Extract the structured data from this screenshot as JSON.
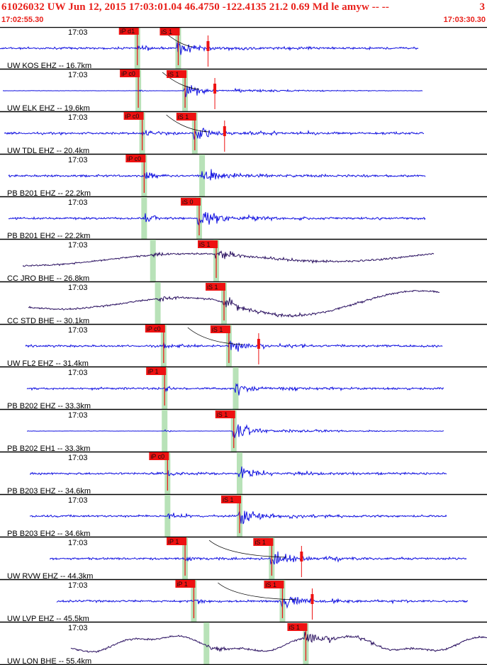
{
  "header": {
    "title": "61026032 UW Jun 12, 2015 17:03:01.04    46.4750 -122.4135 21.2 0.69 Md le amyw -- --",
    "title_right": "3",
    "start_time": "17:02:55.30",
    "end_time": "17:03:30.30"
  },
  "colors": {
    "header_text": "#e8201a",
    "trace_blue": "#1010e0",
    "trace_dark": "#2a1060",
    "pick_red": "#ee1111",
    "window_green": "#b8e2b8",
    "divider": "#000000"
  },
  "traces": [
    {
      "label": "UW KOS EHZ -- 16.7km",
      "time": "17:03",
      "color": "blue",
      "p_tag": "iP d1",
      "s_tag": "iS 1",
      "p": 0.282,
      "s": 0.366,
      "flat": false,
      "long_period": false,
      "amp": 0.35
    },
    {
      "label": "UW ELK EHZ -- 19.6km",
      "time": "17:03",
      "color": "blue",
      "p_tag": "iP c0",
      "s_tag": "iS 1",
      "p": 0.284,
      "s": 0.38,
      "flat": true,
      "long_period": false,
      "amp": 0.3
    },
    {
      "label": "UW TDL EHZ -- 20.4km",
      "time": "17:03",
      "color": "blue",
      "p_tag": "iP c0",
      "s_tag": "iS 1",
      "p": 0.292,
      "s": 0.4,
      "flat": false,
      "long_period": false,
      "amp": 0.4
    },
    {
      "label": "PB B201 EHZ -- 22.2km",
      "time": "17:03",
      "color": "blue",
      "p_tag": "iP c0",
      "s_tag": "",
      "p": 0.296,
      "s": 0.415,
      "flat": false,
      "long_period": false,
      "amp": 0.45
    },
    {
      "label": "PB B201 EH2 -- 22.2km",
      "time": "17:03",
      "color": "blue",
      "p_tag": "",
      "s_tag": "iS 0",
      "p": 0.296,
      "s": 0.409,
      "flat": false,
      "long_period": false,
      "amp": 0.5
    },
    {
      "label": "CC JRO BHE -- 26.8km",
      "time": "17:03",
      "color": "dark",
      "p_tag": "",
      "s_tag": "iS 1",
      "p": 0.314,
      "s": 0.444,
      "flat": false,
      "long_period": true,
      "amp": 0.25
    },
    {
      "label": "CC STD BHE -- 30.1km",
      "time": "17:03",
      "color": "dark",
      "p_tag": "",
      "s_tag": "iS 1",
      "p": 0.324,
      "s": 0.46,
      "flat": false,
      "long_period": true,
      "amp": 0.35
    },
    {
      "label": "UW FL2 EHZ -- 31.4km",
      "time": "17:03",
      "color": "blue",
      "p_tag": "iP c0",
      "s_tag": "iS 1",
      "p": 0.336,
      "s": 0.47,
      "flat": false,
      "long_period": false,
      "amp": 0.35
    },
    {
      "label": "PB B202 EHZ -- 33.3km",
      "time": "17:03",
      "color": "blue",
      "p_tag": "iP 1",
      "s_tag": "",
      "p": 0.338,
      "s": 0.484,
      "flat": false,
      "long_period": false,
      "amp": 0.3
    },
    {
      "label": "PB B202 EH1 -- 33.3km",
      "time": "17:03",
      "color": "blue",
      "p_tag": "",
      "s_tag": "iS 1",
      "p": 0.338,
      "s": 0.48,
      "flat": true,
      "long_period": false,
      "amp": 0.4
    },
    {
      "label": "PB B203 EHZ -- 34.6km",
      "time": "17:03",
      "color": "blue",
      "p_tag": "iP c0",
      "s_tag": "",
      "p": 0.344,
      "s": 0.492,
      "flat": false,
      "long_period": false,
      "amp": 0.35
    },
    {
      "label": "PB B203 EH2 -- 34.6km",
      "time": "17:03",
      "color": "blue",
      "p_tag": "",
      "s_tag": "iS 1",
      "p": 0.344,
      "s": 0.492,
      "flat": false,
      "long_period": false,
      "amp": 0.45
    },
    {
      "label": "UW RVW EHZ -- 44.3km",
      "time": "17:03",
      "color": "blue",
      "p_tag": "iP 1",
      "s_tag": "iS 1",
      "p": 0.38,
      "s": 0.558,
      "flat": false,
      "long_period": false,
      "amp": 0.4
    },
    {
      "label": "UW LVP EHZ -- 45.5km",
      "time": "17:03",
      "color": "blue",
      "p_tag": "iP 1",
      "s_tag": "iS 1",
      "p": 0.398,
      "s": 0.58,
      "flat": false,
      "long_period": false,
      "amp": 0.35
    },
    {
      "label": "UW LON BHE -- 55.4km",
      "time": "17:03",
      "color": "dark",
      "p_tag": "",
      "s_tag": "iS 1",
      "p": 0.424,
      "s": 0.628,
      "flat": false,
      "long_period": true,
      "amp": 0.4
    }
  ]
}
